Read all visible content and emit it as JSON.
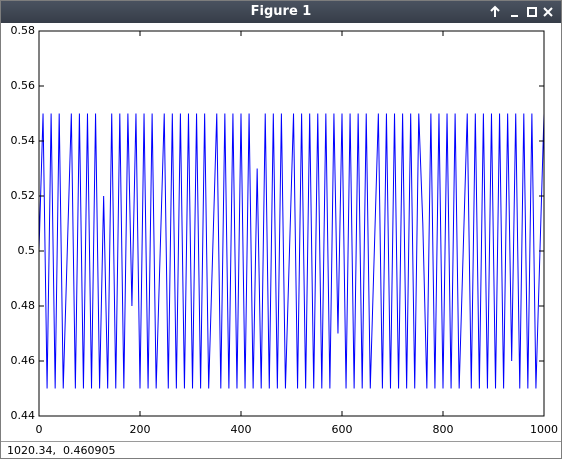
{
  "window": {
    "title": "Figure 1"
  },
  "chart_data": {
    "type": "line",
    "x": [
      0,
      8,
      16,
      24,
      32,
      40,
      48,
      56,
      64,
      72,
      80,
      88,
      96,
      104,
      112,
      120,
      128,
      136,
      144,
      152,
      160,
      168,
      176,
      184,
      192,
      200,
      208,
      216,
      224,
      232,
      240,
      248,
      256,
      264,
      272,
      280,
      288,
      296,
      304,
      312,
      320,
      328,
      336,
      344,
      352,
      360,
      368,
      376,
      384,
      392,
      400,
      408,
      416,
      424,
      432,
      440,
      448,
      456,
      464,
      472,
      480,
      488,
      496,
      504,
      512,
      520,
      528,
      536,
      544,
      552,
      560,
      568,
      576,
      584,
      592,
      600,
      608,
      616,
      624,
      632,
      640,
      648,
      656,
      664,
      672,
      680,
      688,
      696,
      704,
      712,
      720,
      728,
      736,
      744,
      752,
      760,
      768,
      776,
      784,
      792,
      800,
      808,
      816,
      824,
      832,
      840,
      848,
      856,
      864,
      872,
      880,
      888,
      896,
      904,
      912,
      920,
      928,
      936,
      944,
      952,
      960,
      968,
      976,
      984,
      992,
      1000
    ],
    "series": [
      {
        "color": "#0000ff",
        "values": [
          0.5,
          0.55,
          0.45,
          0.55,
          0.45,
          0.55,
          0.45,
          0.5,
          0.55,
          0.45,
          0.55,
          0.45,
          0.55,
          0.45,
          0.55,
          0.45,
          0.52,
          0.45,
          0.55,
          0.45,
          0.55,
          0.45,
          0.55,
          0.48,
          0.55,
          0.45,
          0.55,
          0.45,
          0.55,
          0.45,
          0.5,
          0.55,
          0.45,
          0.55,
          0.45,
          0.55,
          0.45,
          0.55,
          0.45,
          0.55,
          0.45,
          0.55,
          0.45,
          0.5,
          0.55,
          0.45,
          0.55,
          0.45,
          0.55,
          0.45,
          0.55,
          0.45,
          0.55,
          0.45,
          0.53,
          0.45,
          0.55,
          0.45,
          0.55,
          0.45,
          0.55,
          0.45,
          0.5,
          0.55,
          0.45,
          0.55,
          0.45,
          0.55,
          0.45,
          0.55,
          0.45,
          0.55,
          0.45,
          0.55,
          0.47,
          0.55,
          0.45,
          0.55,
          0.45,
          0.55,
          0.45,
          0.55,
          0.45,
          0.5,
          0.55,
          0.45,
          0.55,
          0.45,
          0.55,
          0.45,
          0.55,
          0.45,
          0.55,
          0.45,
          0.55,
          0.51,
          0.45,
          0.55,
          0.45,
          0.55,
          0.45,
          0.55,
          0.45,
          0.55,
          0.45,
          0.5,
          0.55,
          0.45,
          0.55,
          0.45,
          0.55,
          0.45,
          0.55,
          0.45,
          0.55,
          0.45,
          0.55,
          0.46,
          0.55,
          0.45,
          0.55,
          0.45,
          0.55,
          0.45,
          0.5,
          0.55
        ]
      }
    ],
    "xlim": [
      0,
      1000
    ],
    "xticks": [
      0,
      200,
      400,
      600,
      800,
      1000
    ],
    "ylim": [
      0.44,
      0.58
    ],
    "yticks": [
      0.44,
      0.46,
      0.48,
      0.5,
      0.52,
      0.54,
      0.56,
      0.58
    ],
    "grid": false
  },
  "status_bar": {
    "text": "1020.34,  0.460905"
  }
}
